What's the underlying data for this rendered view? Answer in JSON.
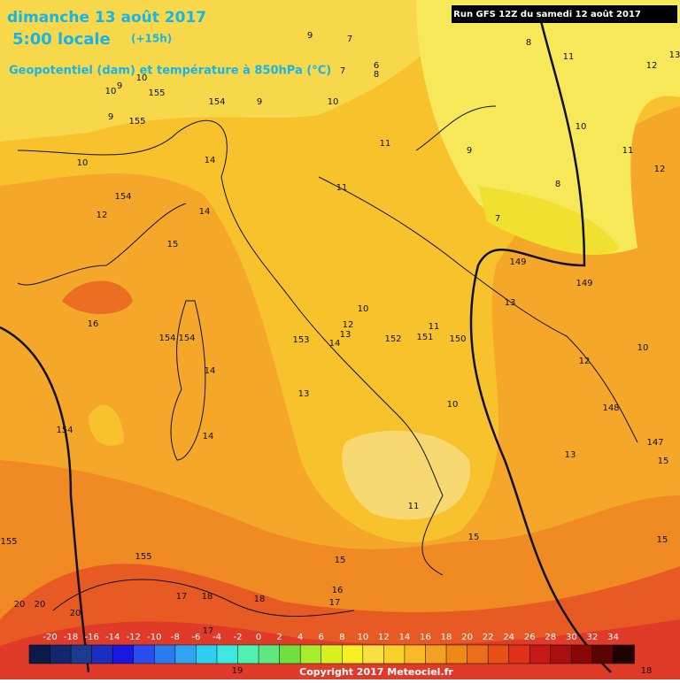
{
  "header": {
    "title": "dimanche 13 août 2017",
    "time": "5:00 locale",
    "lead": "(+15h)",
    "subtitle": "Geopotentiel (dam) et température à 850hPa (°C)",
    "run": "Run GFS 12Z du samedi 12 août 2017"
  },
  "footer": {
    "copyright": "Copyright 2017 Meteociel.fr"
  },
  "legend": {
    "labels": [
      -20,
      -18,
      -16,
      -14,
      -12,
      -10,
      -8,
      -6,
      -4,
      -2,
      0,
      2,
      4,
      6,
      8,
      10,
      12,
      14,
      16,
      18,
      20,
      22,
      24,
      26,
      28,
      30,
      32,
      34
    ],
    "colors": [
      "#0a1a4a",
      "#14276e",
      "#1c3a8f",
      "#1a2ec0",
      "#1818e0",
      "#2a4cf0",
      "#2a7af0",
      "#30a4f0",
      "#30cff0",
      "#3ee8e0",
      "#50f0b0",
      "#60e880",
      "#70e040",
      "#a8ec30",
      "#d8f020",
      "#f8f020",
      "#f8e040",
      "#f8d028",
      "#f8b828",
      "#f4a020",
      "#f08818",
      "#ec6e18",
      "#e85018",
      "#e03018",
      "#c81818",
      "#a81010",
      "#880808",
      "#5a0404",
      "#200000"
    ]
  },
  "map_labels": [
    9,
    7,
    8,
    11,
    12,
    13,
    6,
    8,
    7,
    10,
    9,
    155,
    10,
    9,
    155,
    154,
    9,
    10,
    10,
    11,
    9,
    11,
    10,
    14,
    12,
    8,
    11,
    154,
    14,
    12,
    7,
    15,
    149,
    149,
    13,
    16,
    10,
    12,
    13,
    14,
    153,
    154,
    154,
    152,
    151,
    150,
    11,
    10,
    12,
    14,
    13,
    10,
    148,
    154,
    14,
    147,
    13,
    15,
    11,
    15,
    15,
    155,
    155,
    15,
    16,
    17,
    17,
    18,
    18,
    20,
    20,
    20,
    17,
    19,
    18
  ]
}
